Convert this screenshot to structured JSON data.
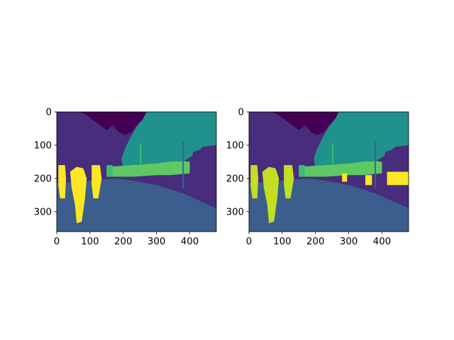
{
  "palette": {
    "sky": "#440154",
    "building": "#472d7b",
    "wall": "#3b528b",
    "road": "#3b5e8c",
    "sidewalk": "#472d7b",
    "vegetation": "#21918c",
    "fence": "#2ba089",
    "pole": "#31688e",
    "car": "#5ec962",
    "truck": "#3fbc73",
    "person": "#fde725",
    "person_pred": "#c2df23"
  },
  "chart_data": [
    {
      "type": "heatmap",
      "panel": "left",
      "description_label": "",
      "xlim": [
        0,
        480
      ],
      "ylim": [
        360,
        0
      ],
      "xticks": [
        "0",
        "100",
        "200",
        "300",
        "400"
      ],
      "yticks": [
        "0",
        "100",
        "200",
        "300"
      ],
      "colormap": "viridis",
      "regions": [
        "sky",
        "building",
        "vegetation",
        "road",
        "sidewalk",
        "car",
        "person"
      ]
    },
    {
      "type": "heatmap",
      "panel": "right",
      "description_label": "",
      "xlim": [
        0,
        480
      ],
      "ylim": [
        360,
        0
      ],
      "xticks": [
        "0",
        "100",
        "200",
        "300",
        "400"
      ],
      "yticks": [
        "0",
        "100",
        "200",
        "300"
      ],
      "colormap": "viridis",
      "regions": [
        "sky",
        "building",
        "vegetation",
        "road",
        "sidewalk",
        "car",
        "person"
      ]
    }
  ]
}
